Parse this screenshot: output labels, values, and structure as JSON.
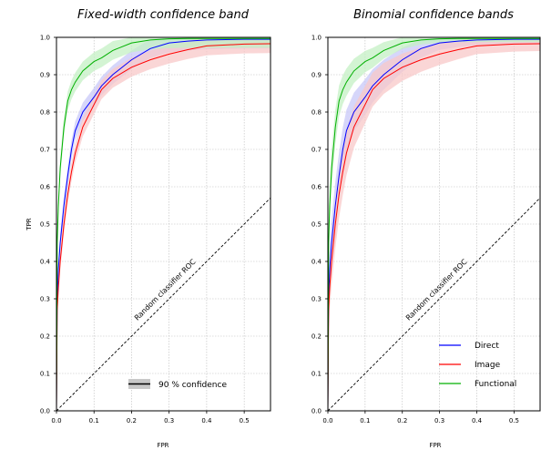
{
  "chart_data": [
    {
      "type": "line",
      "title": "Fixed-width confidence band",
      "xlabel": "FPR",
      "ylabel": "TPR",
      "xlim": [
        0,
        0.57
      ],
      "ylim": [
        0,
        1.0
      ],
      "xticks": [
        "0.0",
        "0.1",
        "0.2",
        "0.3",
        "0.4",
        "0.5"
      ],
      "yticks": [
        "0.0",
        "0.1",
        "0.2",
        "0.3",
        "0.4",
        "0.5",
        "0.6",
        "0.7",
        "0.8",
        "0.9",
        "1.0"
      ],
      "grid": true,
      "legend": [
        {
          "label": "90 % confidence",
          "color": "#000000"
        }
      ],
      "legend_position": "bottom-right",
      "annotation": "Random classifier ROC",
      "reference_line": {
        "x": [
          0,
          0.57
        ],
        "y": [
          0,
          0.57
        ],
        "style": "dashed"
      },
      "band_type": "fixed",
      "series": [
        {
          "color": "#0000ff",
          "band_color": "#c8c8f8",
          "x": [
            0,
            0.002,
            0.005,
            0.01,
            0.02,
            0.03,
            0.04,
            0.05,
            0.07,
            0.1,
            0.12,
            0.15,
            0.2,
            0.25,
            0.3,
            0.35,
            0.4,
            0.5,
            0.57
          ],
          "y": [
            0,
            0.3,
            0.38,
            0.45,
            0.55,
            0.63,
            0.7,
            0.75,
            0.8,
            0.84,
            0.87,
            0.9,
            0.94,
            0.97,
            0.985,
            0.99,
            0.993,
            0.995,
            0.995
          ],
          "band": 0.025
        },
        {
          "color": "#ff0000",
          "band_color": "#f8c8c8",
          "x": [
            0,
            0.002,
            0.005,
            0.01,
            0.02,
            0.03,
            0.04,
            0.05,
            0.07,
            0.1,
            0.12,
            0.15,
            0.2,
            0.25,
            0.3,
            0.35,
            0.4,
            0.5,
            0.57
          ],
          "y": [
            0,
            0.27,
            0.33,
            0.4,
            0.5,
            0.58,
            0.64,
            0.69,
            0.76,
            0.82,
            0.86,
            0.89,
            0.92,
            0.94,
            0.955,
            0.967,
            0.977,
            0.982,
            0.983
          ],
          "band": 0.025
        },
        {
          "color": "#00b000",
          "band_color": "#c4f0c4",
          "x": [
            0,
            0.002,
            0.005,
            0.01,
            0.02,
            0.03,
            0.04,
            0.05,
            0.07,
            0.1,
            0.12,
            0.15,
            0.2,
            0.25,
            0.3,
            0.35,
            0.4,
            0.5,
            0.57
          ],
          "y": [
            0,
            0.45,
            0.55,
            0.65,
            0.76,
            0.83,
            0.86,
            0.88,
            0.91,
            0.935,
            0.945,
            0.965,
            0.985,
            0.993,
            0.996,
            0.997,
            0.997,
            0.997,
            0.997
          ],
          "band": 0.025
        }
      ]
    },
    {
      "type": "line",
      "title": "Binomial confidence bands",
      "xlabel": "FPR",
      "ylabel": "",
      "xlim": [
        0,
        0.57
      ],
      "ylim": [
        0,
        1.0
      ],
      "xticks": [
        "0.0",
        "0.1",
        "0.2",
        "0.3",
        "0.4",
        "0.5"
      ],
      "yticks": [
        "0.0",
        "0.1",
        "0.2",
        "0.3",
        "0.4",
        "0.5",
        "0.6",
        "0.7",
        "0.8",
        "0.9",
        "1.0"
      ],
      "grid": true,
      "legend": [
        {
          "label": "Direct",
          "color": "#0000ff"
        },
        {
          "label": "Image",
          "color": "#ff0000"
        },
        {
          "label": "Functional",
          "color": "#00b000"
        }
      ],
      "legend_position": "bottom-right",
      "annotation": "Random classifier ROC",
      "reference_line": {
        "x": [
          0,
          0.57
        ],
        "y": [
          0,
          0.57
        ],
        "style": "dashed"
      },
      "band_type": "binomial",
      "series": [
        {
          "name": "Direct",
          "color": "#0000ff",
          "band_color": "#c8c8f8",
          "x": [
            0,
            0.002,
            0.005,
            0.01,
            0.02,
            0.03,
            0.04,
            0.05,
            0.07,
            0.1,
            0.12,
            0.15,
            0.2,
            0.25,
            0.3,
            0.35,
            0.4,
            0.5,
            0.57
          ],
          "y": [
            0,
            0.3,
            0.38,
            0.45,
            0.55,
            0.63,
            0.7,
            0.75,
            0.8,
            0.84,
            0.87,
            0.9,
            0.94,
            0.97,
            0.985,
            0.99,
            0.993,
            0.995,
            0.995
          ],
          "band": 0.06
        },
        {
          "name": "Image",
          "color": "#ff0000",
          "band_color": "#f8c8c8",
          "x": [
            0,
            0.002,
            0.005,
            0.01,
            0.02,
            0.03,
            0.04,
            0.05,
            0.07,
            0.1,
            0.12,
            0.15,
            0.2,
            0.25,
            0.3,
            0.35,
            0.4,
            0.5,
            0.57
          ],
          "y": [
            0,
            0.27,
            0.33,
            0.4,
            0.5,
            0.58,
            0.64,
            0.69,
            0.76,
            0.82,
            0.86,
            0.89,
            0.92,
            0.94,
            0.955,
            0.967,
            0.977,
            0.982,
            0.983
          ],
          "band": 0.06
        },
        {
          "name": "Functional",
          "color": "#00b000",
          "band_color": "#c4f0c4",
          "x": [
            0,
            0.002,
            0.005,
            0.01,
            0.02,
            0.03,
            0.04,
            0.05,
            0.07,
            0.1,
            0.12,
            0.15,
            0.2,
            0.25,
            0.3,
            0.35,
            0.4,
            0.5,
            0.57
          ],
          "y": [
            0,
            0.45,
            0.55,
            0.65,
            0.76,
            0.83,
            0.86,
            0.88,
            0.91,
            0.935,
            0.945,
            0.965,
            0.985,
            0.993,
            0.996,
            0.997,
            0.997,
            0.997,
            0.997
          ],
          "band": 0.05
        }
      ]
    }
  ]
}
